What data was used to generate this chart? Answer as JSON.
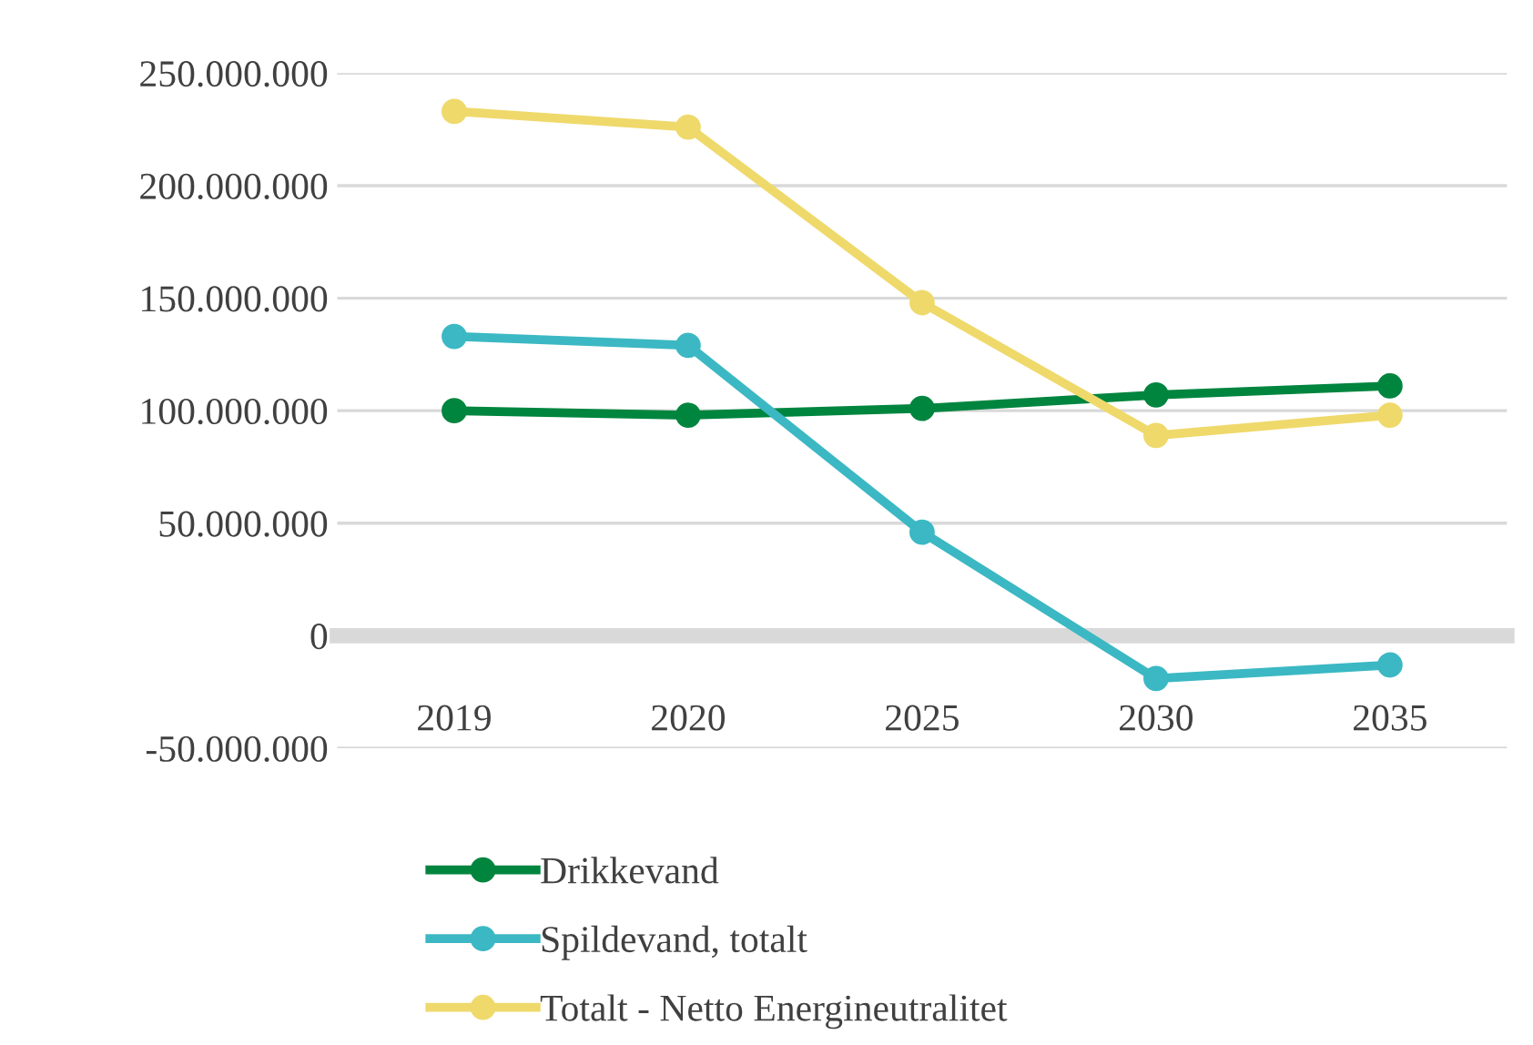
{
  "chart_data": {
    "type": "line",
    "categories": [
      "2019",
      "2020",
      "2025",
      "2030",
      "2035"
    ],
    "series": [
      {
        "name": "Drikkevand",
        "color": "#00853f",
        "values": [
          100000000,
          98000000,
          101000000,
          107000000,
          111000000
        ]
      },
      {
        "name": "Spildevand, totalt",
        "color": "#3bb8c3",
        "values": [
          133000000,
          129000000,
          46000000,
          -19000000,
          -13000000
        ]
      },
      {
        "name": "Totalt - Netto Energineutralitet",
        "color": "#efd96b",
        "values": [
          233000000,
          226000000,
          148000000,
          89000000,
          98000000
        ]
      }
    ],
    "ylim": [
      -50000000,
      250000000
    ],
    "yticks": [
      {
        "value": -50000000,
        "label": "-50.000.000"
      },
      {
        "value": 0,
        "label": "0"
      },
      {
        "value": 50000000,
        "label": "50.000.000"
      },
      {
        "value": 100000000,
        "label": "100.000.000"
      },
      {
        "value": 150000000,
        "label": "150.000.000"
      },
      {
        "value": 200000000,
        "label": "200.000.000"
      },
      {
        "value": 250000000,
        "label": "250.000.000"
      }
    ],
    "grid": "y",
    "legend": "bottom",
    "marker": "circle",
    "line_style": "solid"
  }
}
